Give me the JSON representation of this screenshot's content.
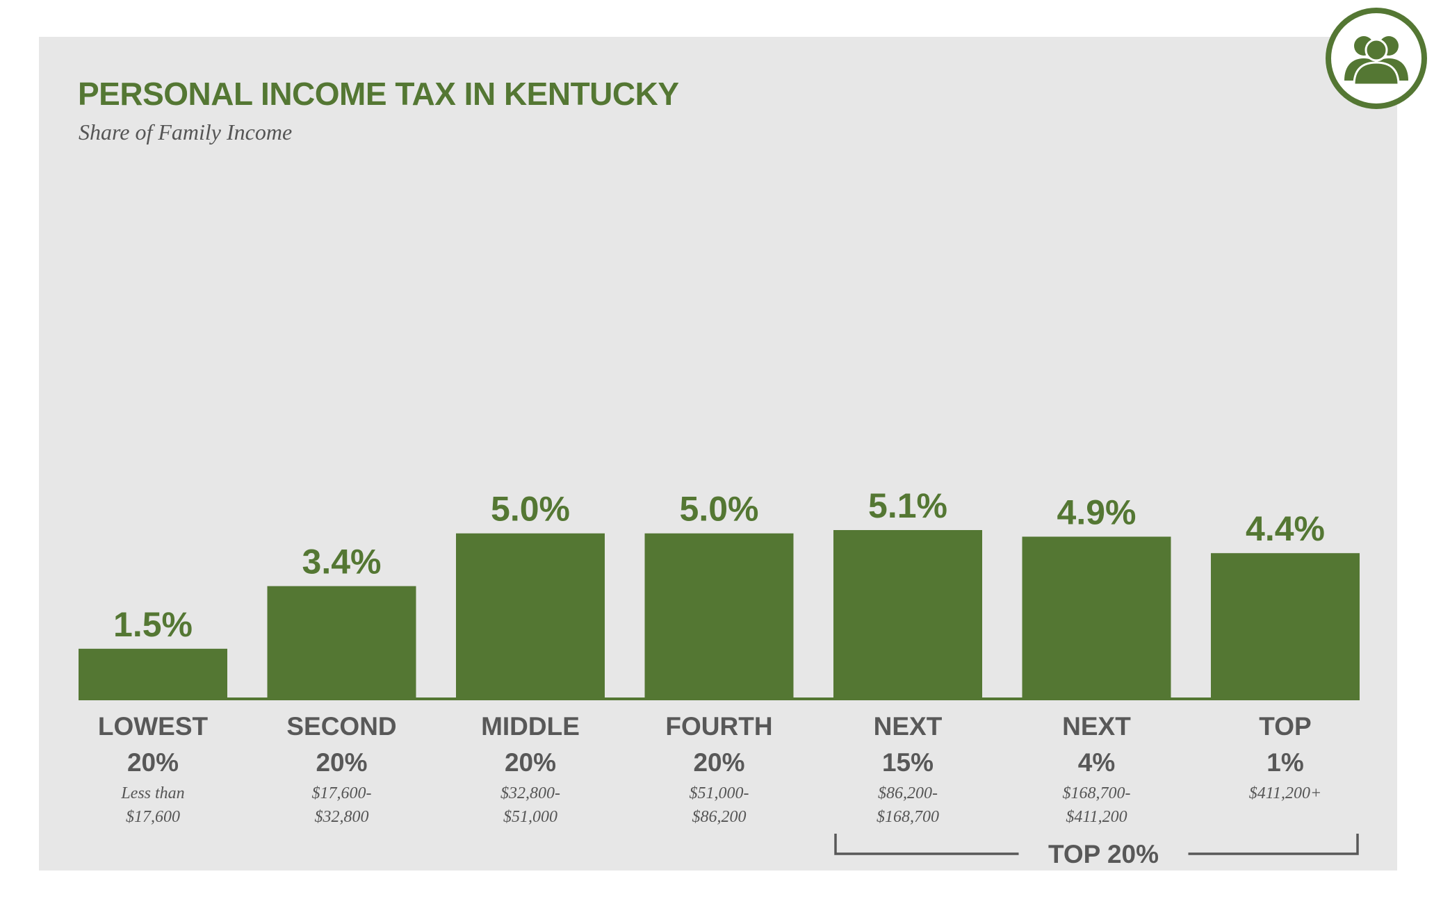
{
  "colors": {
    "accent": "#547733",
    "panel": "#e7e7e7",
    "label": "#585858"
  },
  "logo": {
    "icon": "people-group-icon"
  },
  "chart_data": {
    "type": "bar",
    "title": "PERSONAL INCOME TAX IN KENTUCKY",
    "subtitle": "Share of Family Income",
    "xlabel": "",
    "ylabel": "",
    "ylim": [
      0,
      5.1
    ],
    "grid": false,
    "categories": [
      {
        "line1": "LOWEST",
        "line2": "20%",
        "range": [
          "Less than",
          "$17,600"
        ]
      },
      {
        "line1": "SECOND",
        "line2": "20%",
        "range": [
          "$17,600-",
          "$32,800"
        ]
      },
      {
        "line1": "MIDDLE",
        "line2": "20%",
        "range": [
          "$32,800-",
          "$51,000"
        ]
      },
      {
        "line1": "FOURTH",
        "line2": "20%",
        "range": [
          "$51,000-",
          "$86,200"
        ]
      },
      {
        "line1": "NEXT",
        "line2": "15%",
        "range": [
          "$86,200-",
          "$168,700"
        ]
      },
      {
        "line1": "NEXT",
        "line2": "4%",
        "range": [
          "$168,700-",
          "$411,200"
        ]
      },
      {
        "line1": "TOP",
        "line2": "1%",
        "range": [
          "$411,200+"
        ]
      }
    ],
    "values": [
      1.5,
      3.4,
      5.0,
      5.0,
      5.1,
      4.9,
      4.4
    ],
    "value_labels": [
      "1.5%",
      "3.4%",
      "5.0%",
      "5.0%",
      "5.1%",
      "4.9%",
      "4.4%"
    ],
    "annotations": [
      {
        "text": "TOP 20%",
        "spans_categories": [
          4,
          6
        ]
      }
    ]
  }
}
